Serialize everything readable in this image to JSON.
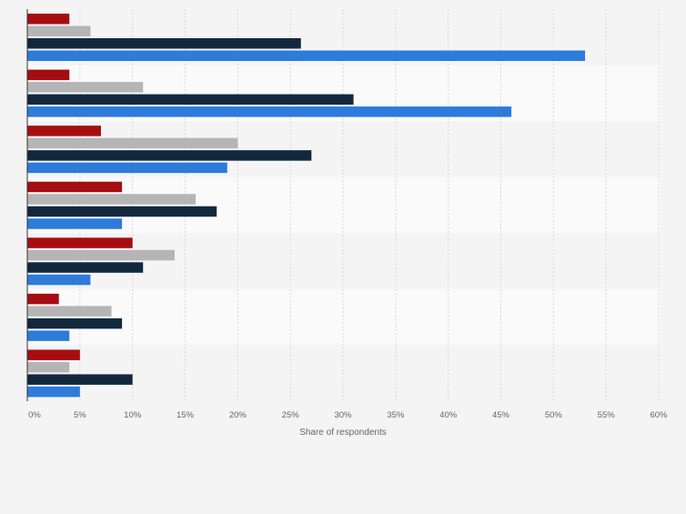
{
  "chart_data": {
    "type": "bar",
    "orientation": "horizontal",
    "xlabel": "Share of respondents",
    "xlim": [
      0,
      60
    ],
    "tick_values": [
      0,
      5,
      10,
      15,
      20,
      25,
      30,
      35,
      40,
      45,
      50,
      55,
      60
    ],
    "tick_labels": [
      "0%",
      "5%",
      "10%",
      "15%",
      "20%",
      "25%",
      "30%",
      "35%",
      "40%",
      "45%",
      "50%",
      "55%",
      "60%"
    ],
    "grid": true,
    "categories": [
      "",
      "",
      "",
      "",
      "",
      "",
      ""
    ],
    "series": [
      {
        "color": "#a50d12",
        "values": [
          4,
          4,
          7,
          9,
          10,
          3,
          5
        ]
      },
      {
        "color": "#b5b5b5",
        "values": [
          6,
          11,
          20,
          16,
          14,
          8,
          4
        ]
      },
      {
        "color": "#13283d",
        "values": [
          26,
          31,
          27,
          18,
          11,
          9,
          10
        ]
      },
      {
        "color": "#2d7bdb",
        "values": [
          53,
          46,
          19,
          9,
          6,
          4,
          5
        ]
      }
    ]
  }
}
